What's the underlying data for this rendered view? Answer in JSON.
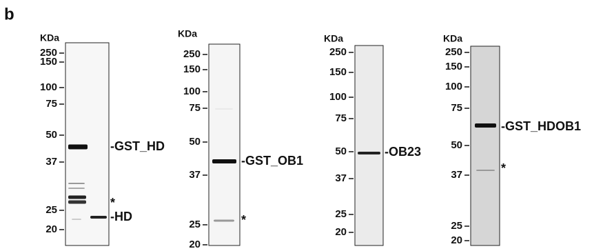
{
  "figure_label": "b",
  "panels": [
    {
      "unit": "KDa",
      "markers": [
        "250",
        "150",
        "100",
        "75",
        "50",
        "37",
        "25",
        "20"
      ],
      "labels": [
        "-GST_HD",
        "*",
        "-HD"
      ]
    },
    {
      "unit": "KDa",
      "markers": [
        "250",
        "150",
        "100",
        "75",
        "50",
        "37",
        "25",
        "20"
      ],
      "labels": [
        "-GST_OB1",
        "*"
      ]
    },
    {
      "unit": "KDa",
      "markers": [
        "250",
        "150",
        "100",
        "75",
        "50",
        "37",
        "25",
        "20"
      ],
      "labels": [
        "-OB23"
      ]
    },
    {
      "unit": "KDa",
      "markers": [
        "250",
        "150",
        "100",
        "75",
        "50",
        "37",
        "25",
        "20"
      ],
      "labels": [
        "-GST_HDOB1",
        "*"
      ]
    }
  ]
}
